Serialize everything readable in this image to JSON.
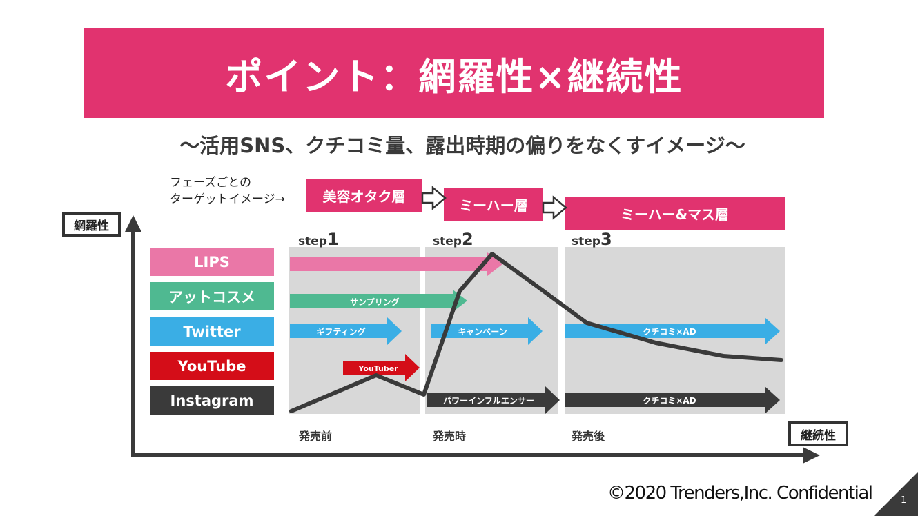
{
  "title": "ポイント：網羅性×継続性",
  "subtitle": "〜活用SNS、クチコミ量、露出時期の偏りをなくすイメージ〜",
  "phase_note": {
    "line1": "フェーズごとの",
    "line2": "ターゲットイメージ→"
  },
  "phases": [
    "美容オタク層",
    "ミーハー層",
    "ミーハー&マス層"
  ],
  "y_axis_label": "網羅性",
  "x_axis_label": "継続性",
  "steps": [
    {
      "prefix": "step",
      "num": "1"
    },
    {
      "prefix": "step",
      "num": "2"
    },
    {
      "prefix": "step",
      "num": "3"
    }
  ],
  "timings": [
    "発売前",
    "発売時",
    "発売後"
  ],
  "sns": [
    {
      "name": "LIPS",
      "color": "#ea77a7"
    },
    {
      "name": "アットコスメ",
      "color": "#4fb991"
    },
    {
      "name": "Twitter",
      "color": "#3aaee5"
    },
    {
      "name": "YouTube",
      "color": "#d40d18"
    },
    {
      "name": "Instagram",
      "color": "#3a3a3a"
    }
  ],
  "arrows": [
    {
      "channel": "LIPS",
      "label": "",
      "color": "#ea77a7"
    },
    {
      "channel": "アットコスメ",
      "label": "サンプリング",
      "color": "#4fb991"
    },
    {
      "channel": "Twitter",
      "label": "ギフティング",
      "color": "#3aaee5"
    },
    {
      "channel": "Twitter",
      "label": "キャンペーン",
      "color": "#3aaee5"
    },
    {
      "channel": "Twitter",
      "label": "クチコミ×AD",
      "color": "#3aaee5"
    },
    {
      "channel": "YouTube",
      "label": "YouTuber",
      "color": "#d40d18"
    },
    {
      "channel": "Instagram",
      "label": "パワーインフルエンサー",
      "color": "#3a3a3a"
    },
    {
      "channel": "Instagram",
      "label": "クチコミ×AD",
      "color": "#3a3a3a"
    }
  ],
  "copyright": "©2020 Trenders,Inc. Confidential",
  "page_number": "1"
}
